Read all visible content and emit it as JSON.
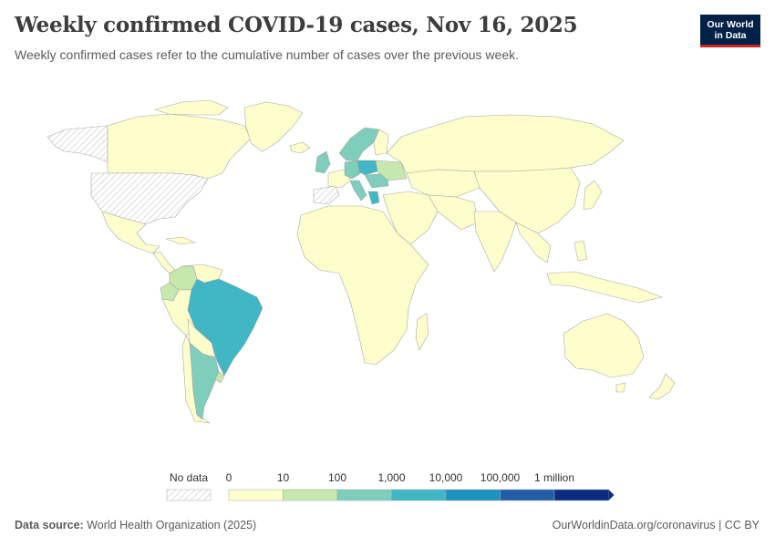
{
  "header": {
    "title": "Weekly confirmed COVID-19 cases, Nov 16, 2025",
    "subtitle": "Weekly confirmed cases refer to the cumulative number of cases over the previous week."
  },
  "logo": {
    "line1": "Our World",
    "line2": "in Data"
  },
  "legend": {
    "no_data_label": "No data",
    "tick_labels": [
      "0",
      "10",
      "100",
      "1,000",
      "10,000",
      "100,000",
      "1 million"
    ],
    "bin_colors": [
      "#fefecd",
      "#c7e8ad",
      "#7fcdbb",
      "#41b6c4",
      "#1d91c0",
      "#225ea8",
      "#0c2c84"
    ]
  },
  "footer": {
    "source_label": "Data source:",
    "source_text": "World Health Organization (2025)",
    "credit": "OurWorldinData.org/coronavirus | CC BY"
  },
  "chart_data": {
    "type": "choropleth",
    "title": "Weekly confirmed COVID-19 cases, Nov 16, 2025",
    "scale": "log",
    "bins": [
      "0-10",
      "10-100",
      "100-1,000",
      "1,000-10,000",
      "10,000-100,000",
      "100,000-1 million"
    ],
    "regions": [
      {
        "name": "Brazil",
        "bin": "1,000-10,000"
      },
      {
        "name": "Argentina",
        "bin": "100-1,000"
      },
      {
        "name": "Colombia",
        "bin": "10-100"
      },
      {
        "name": "Ecuador",
        "bin": "10-100"
      },
      {
        "name": "Uruguay",
        "bin": "10-100"
      },
      {
        "name": "Poland",
        "bin": "1,000-10,000"
      },
      {
        "name": "Greece",
        "bin": "1,000-10,000"
      },
      {
        "name": "Sweden",
        "bin": "100-1,000"
      },
      {
        "name": "Germany",
        "bin": "100-1,000"
      },
      {
        "name": "Romania",
        "bin": "100-1,000"
      },
      {
        "name": "Ukraine",
        "bin": "10-100"
      },
      {
        "name": "United States",
        "bin": "No data"
      },
      {
        "name": "Greenland",
        "bin": "No data"
      },
      {
        "name": "Canada",
        "bin": "0-10"
      },
      {
        "name": "Russia",
        "bin": "0-10"
      },
      {
        "name": "China",
        "bin": "0-10"
      },
      {
        "name": "Australia",
        "bin": "0-10"
      }
    ]
  }
}
